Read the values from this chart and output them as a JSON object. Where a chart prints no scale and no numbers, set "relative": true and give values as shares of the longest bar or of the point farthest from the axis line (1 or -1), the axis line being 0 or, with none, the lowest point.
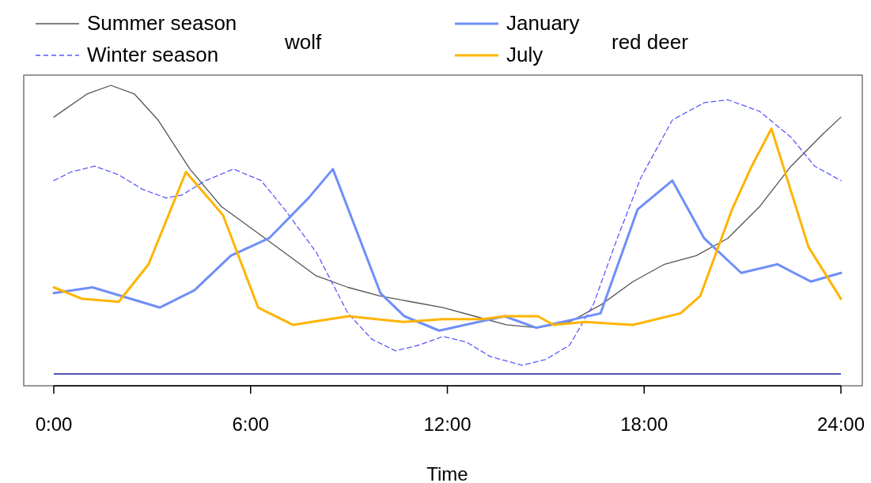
{
  "chart_data": {
    "type": "line",
    "relative": true,
    "xlabel": "Time",
    "xlim": [
      0,
      24
    ],
    "xticks": [
      {
        "value": 0,
        "label": "0:00"
      },
      {
        "value": 6,
        "label": "6:00"
      },
      {
        "value": 12,
        "label": "12:00"
      },
      {
        "value": 18,
        "label": "18:00"
      },
      {
        "value": 24,
        "label": "24:00"
      }
    ],
    "legend": "top",
    "annotations": [
      "wolf",
      "red deer"
    ],
    "ref_lines": [
      {
        "axis": "y",
        "value": 0,
        "color": "#1a1aa0"
      }
    ],
    "series": [
      {
        "name": "Summer season",
        "color": "#555555",
        "line_style": "solid",
        "x": [
          0,
          1.01,
          1.74,
          2.46,
          3.18,
          4.15,
          5.11,
          6.08,
          7.04,
          8.0,
          8.97,
          9.94,
          10.9,
          11.87,
          12.83,
          13.8,
          14.76,
          15.73,
          16.69,
          17.66,
          18.62,
          19.59,
          20.55,
          21.52,
          22.48,
          23.44,
          24
        ],
        "values": [
          0.89,
          0.97,
          1.0,
          0.97,
          0.88,
          0.71,
          0.58,
          0.5,
          0.42,
          0.34,
          0.3,
          0.27,
          0.25,
          0.23,
          0.2,
          0.17,
          0.16,
          0.18,
          0.24,
          0.32,
          0.38,
          0.41,
          0.47,
          0.58,
          0.72,
          0.83,
          0.89
        ]
      },
      {
        "name": "Winter season",
        "color": "#5a5aff",
        "line_style": "dashed",
        "x": [
          0,
          0.53,
          1.25,
          1.98,
          2.7,
          3.42,
          3.91,
          4.63,
          5.48,
          6.32,
          7.04,
          8.01,
          8.97,
          9.7,
          10.42,
          11.14,
          11.87,
          12.59,
          13.31,
          14.28,
          15.0,
          15.73,
          16.45,
          17.18,
          17.9,
          18.86,
          19.83,
          20.55,
          21.52,
          22.48,
          23.2,
          24
        ],
        "values": [
          0.67,
          0.7,
          0.72,
          0.69,
          0.64,
          0.61,
          0.62,
          0.67,
          0.71,
          0.67,
          0.57,
          0.42,
          0.21,
          0.12,
          0.08,
          0.1,
          0.13,
          0.11,
          0.06,
          0.03,
          0.05,
          0.1,
          0.24,
          0.47,
          0.68,
          0.88,
          0.94,
          0.95,
          0.91,
          0.82,
          0.72,
          0.67
        ]
      },
      {
        "name": "January",
        "color": "#6f8ff7",
        "line_style": "solid",
        "x": [
          0,
          1.18,
          3.23,
          4.29,
          5.4,
          6.56,
          7.77,
          8.51,
          9.96,
          10.69,
          11.75,
          13.74,
          14.71,
          16.67,
          17.8,
          18.86,
          19.83,
          20.96,
          22.07,
          23.08,
          24
        ],
        "values": [
          0.28,
          0.3,
          0.23,
          0.29,
          0.41,
          0.47,
          0.61,
          0.71,
          0.28,
          0.2,
          0.15,
          0.2,
          0.16,
          0.21,
          0.57,
          0.67,
          0.47,
          0.35,
          0.38,
          0.32,
          0.35
        ]
      },
      {
        "name": "July",
        "color": "#ffb400",
        "line_style": "solid",
        "x": [
          0,
          0.87,
          1.98,
          2.89,
          4.03,
          5.16,
          6.23,
          7.29,
          8.98,
          10.66,
          11.87,
          13.07,
          13.75,
          14.76,
          15.24,
          16.2,
          17.66,
          19.11,
          19.71,
          20.68,
          21.28,
          21.88,
          23.01,
          24
        ],
        "values": [
          0.3,
          0.26,
          0.25,
          0.38,
          0.7,
          0.55,
          0.23,
          0.17,
          0.2,
          0.18,
          0.19,
          0.19,
          0.2,
          0.2,
          0.17,
          0.18,
          0.17,
          0.21,
          0.27,
          0.57,
          0.72,
          0.85,
          0.44,
          0.26
        ]
      }
    ]
  }
}
